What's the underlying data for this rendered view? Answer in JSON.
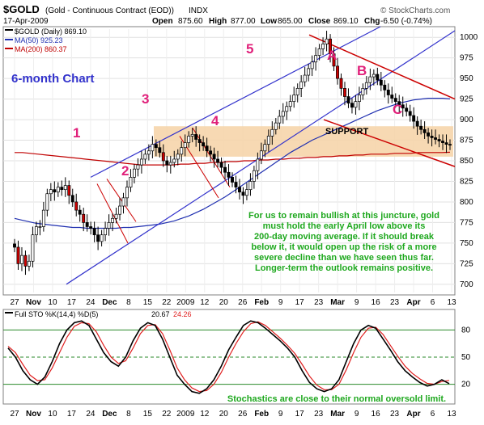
{
  "header": {
    "symbol": "$GOLD",
    "description": "(Gold - Continuous Contract (EOD))",
    "exchange": "INDX",
    "date": "17-Apr-2009",
    "open_label": "Open",
    "open": "875.60",
    "high_label": "High",
    "high": "877.00",
    "low_label": "Low",
    "low": "865.00",
    "close_label": "Close",
    "close": "869.10",
    "chg_label": "Chg",
    "chg": "-6.50 (-0.74%)",
    "brand": "© StockCharts.com"
  },
  "legend": {
    "price": "$GOLD (Daily) 869.10",
    "ma50": "MA(50) 925.23",
    "ma200": "MA(200) 860.37"
  },
  "annotations": {
    "chart_label": "6-month Chart",
    "waves": [
      "1",
      "2",
      "3",
      "4",
      "5"
    ],
    "letters": [
      "A",
      "B",
      "C"
    ],
    "support": "SUPPORT",
    "comment_lines": [
      "For us to remain bullish at this juncture, gold",
      "must hold the early April low above its",
      "200-day moving average. If it should break",
      "below it, it would open up the risk of a more",
      "severe decline than we have seen thus far.",
      "Longer-term the outlook remains positive."
    ],
    "sto_comment": "Stochastics are close to their normal oversold limit."
  },
  "stochastic": {
    "legend_prefix": "Full STO %K(14,4) %D(5)",
    "k": "20.67",
    "d": "24.26"
  },
  "colors": {
    "price": "#000000",
    "ma50": "#1f2fb0",
    "ma200": "#c00000",
    "channel": "#3333cc",
    "downtrend": "#cc0000",
    "support_band": "#f6d2a6",
    "waves": "#e0207a",
    "comment": "#1ea81e",
    "sto_k": "#000000",
    "sto_d": "#e02020"
  },
  "chart_data": {
    "type": "candlestick",
    "title": "$GOLD (Gold - Continuous Contract (EOD)) INDX",
    "x_tick_labels": [
      "27",
      "Nov",
      "10",
      "17",
      "24",
      "Dec",
      "8",
      "15",
      "22",
      "2009",
      "12",
      "20",
      "26",
      "Feb",
      "9",
      "17",
      "23",
      "Mar",
      "9",
      "16",
      "23",
      "Apr",
      "6",
      "13"
    ],
    "ylim": [
      690,
      1010
    ],
    "y_ticks": [
      700,
      725,
      750,
      775,
      800,
      825,
      850,
      875,
      900,
      925,
      950,
      975,
      1000
    ],
    "close_series": [
      745,
      725,
      735,
      722,
      728,
      760,
      770,
      770,
      790,
      810,
      815,
      812,
      818,
      815,
      820,
      808,
      800,
      790,
      785,
      775,
      770,
      768,
      760,
      752,
      760,
      768,
      775,
      780,
      785,
      795,
      805,
      818,
      830,
      840,
      845,
      852,
      858,
      862,
      870,
      866,
      860,
      850,
      845,
      848,
      852,
      858,
      866,
      872,
      880,
      882,
      876,
      872,
      868,
      862,
      858,
      852,
      848,
      842,
      836,
      830,
      824,
      818,
      812,
      808,
      815,
      825,
      838,
      852,
      862,
      870,
      880,
      888,
      896,
      904,
      910,
      916,
      922,
      930,
      938,
      946,
      954,
      962,
      970,
      978,
      986,
      992,
      998,
      980,
      965,
      950,
      938,
      928,
      920,
      915,
      922,
      930,
      938,
      945,
      952,
      955,
      948,
      942,
      936,
      930,
      926,
      922,
      918,
      914,
      910,
      905,
      898,
      892,
      888,
      884,
      880,
      878,
      876,
      874,
      872,
      870,
      869
    ],
    "ma50_series": [
      780,
      778,
      776,
      774,
      773,
      772,
      771,
      770,
      769,
      769,
      768,
      768,
      768,
      768,
      768,
      769,
      769,
      770,
      771,
      772,
      773,
      775,
      777,
      780,
      783,
      787,
      791,
      796,
      801,
      806,
      812,
      818,
      824,
      830,
      836,
      842,
      848,
      854,
      860,
      865,
      870,
      875,
      879,
      883,
      887,
      891,
      895,
      899,
      903,
      907,
      911,
      914,
      917,
      920,
      922,
      924,
      925,
      926,
      926,
      926,
      925.23
    ],
    "ma200_series": [
      860,
      860,
      859,
      858,
      857,
      856,
      855,
      854,
      853,
      852,
      851,
      850,
      849,
      848,
      847,
      846,
      845,
      845,
      845,
      845,
      845,
      846,
      846,
      847,
      847,
      848,
      848,
      849,
      849,
      850,
      850,
      851,
      851,
      852,
      852,
      853,
      853,
      854,
      854,
      855,
      855,
      856,
      856,
      857,
      857,
      858,
      858,
      858,
      859,
      859,
      859,
      860,
      860,
      860,
      860,
      860.37
    ],
    "channel_lines": [
      {
        "name": "lower",
        "from": [
          "Nov 3",
          700
        ],
        "to": [
          "Apr 17",
          1000
        ]
      },
      {
        "name": "upper",
        "from": [
          "Nov 17",
          840
        ],
        "to": [
          "Mar 2",
          1030
        ]
      }
    ],
    "support_zone": [
      855,
      892
    ],
    "stochastic": {
      "ylim": [
        0,
        100
      ],
      "y_ticks": [
        20,
        50,
        80
      ],
      "k_series": [
        60,
        50,
        35,
        25,
        20,
        28,
        45,
        65,
        80,
        88,
        90,
        85,
        70,
        55,
        45,
        40,
        50,
        68,
        82,
        88,
        85,
        70,
        50,
        30,
        20,
        12,
        10,
        15,
        25,
        40,
        58,
        72,
        85,
        90,
        88,
        82,
        75,
        68,
        60,
        50,
        35,
        22,
        15,
        12,
        15,
        25,
        45,
        65,
        80,
        85,
        82,
        70,
        58,
        45,
        35,
        28,
        22,
        18,
        20,
        25,
        20.67
      ],
      "d_series": [
        62,
        55,
        42,
        30,
        24,
        25,
        38,
        55,
        72,
        84,
        88,
        87,
        78,
        63,
        50,
        43,
        46,
        60,
        76,
        85,
        86,
        76,
        58,
        38,
        25,
        16,
        12,
        13,
        20,
        33,
        50,
        65,
        78,
        87,
        89,
        85,
        78,
        71,
        63,
        54,
        42,
        29,
        19,
        14,
        14,
        20,
        36,
        55,
        72,
        82,
        83,
        75,
        63,
        51,
        40,
        32,
        26,
        21,
        20,
        23,
        24.26
      ]
    }
  }
}
